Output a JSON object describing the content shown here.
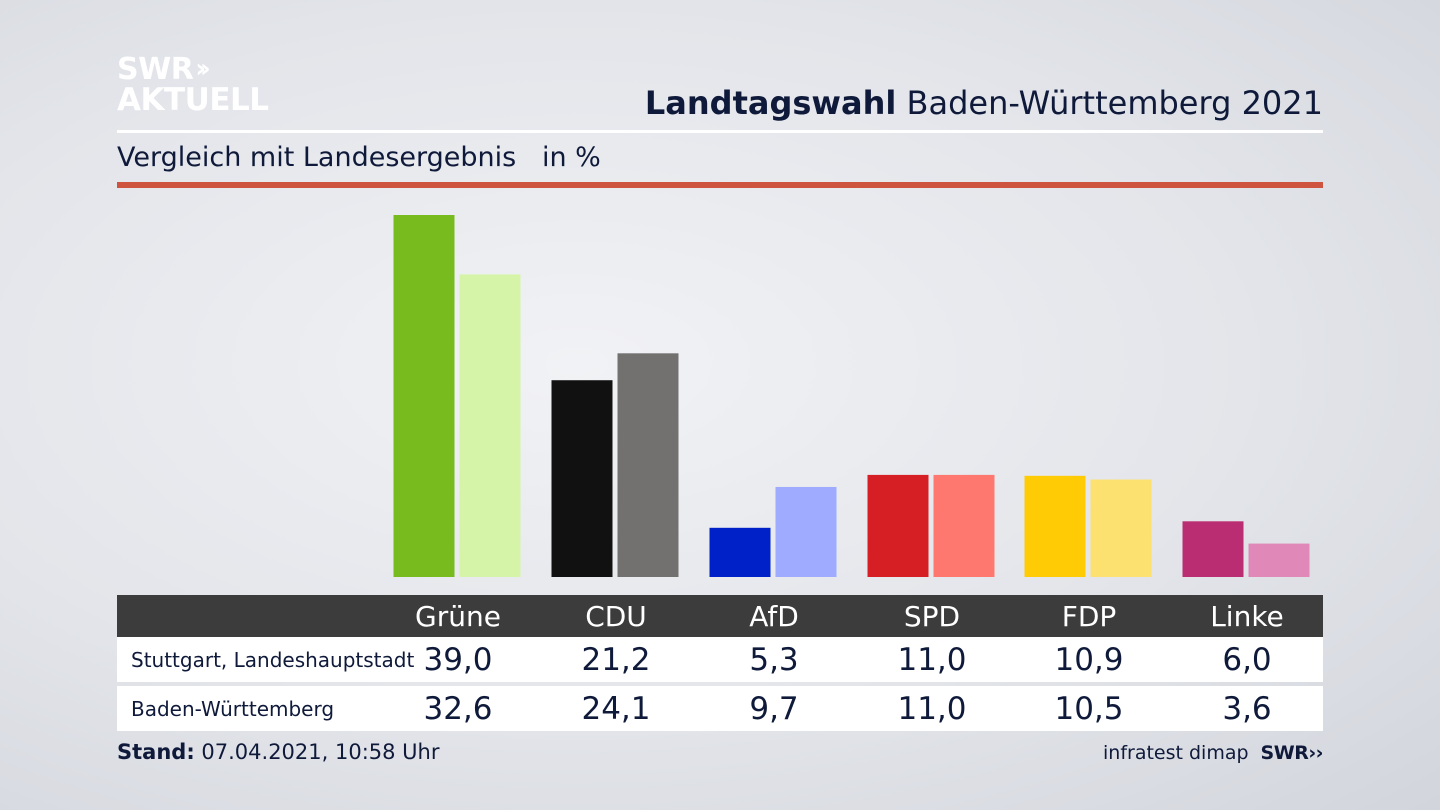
{
  "logo": {
    "line1": "SWR",
    "chevrons": "››",
    "line2": "AKTUELL"
  },
  "header": {
    "title_bold": "Landtagswahl",
    "title_rest": "Baden-Württemberg 2021",
    "subtitle": "Vergleich mit Landesergebnis   in %"
  },
  "colors": {
    "accent_red": "#cf5440",
    "table_header": "#3c3c3c"
  },
  "chart_data": {
    "type": "bar",
    "categories": [
      "Grüne",
      "CDU",
      "AfD",
      "SPD",
      "FDP",
      "Linke"
    ],
    "series": [
      {
        "name": "Stuttgart, Landeshauptstadt",
        "values": [
          39.0,
          21.2,
          5.3,
          11.0,
          10.9,
          6.0
        ],
        "colors": [
          "#77bb1e",
          "#111111",
          "#0020c8",
          "#d61f25",
          "#ffcb05",
          "#bb2d72"
        ]
      },
      {
        "name": "Baden-Württemberg",
        "values": [
          32.6,
          24.1,
          9.7,
          11.0,
          10.5,
          3.6
        ],
        "colors": [
          "#d5f4a8",
          "#737170",
          "#9eabff",
          "#ff7870",
          "#fce070",
          "#e088b8"
        ]
      }
    ],
    "ylim": [
      0,
      39.0
    ],
    "grid": false,
    "legend": "table-below"
  },
  "table": {
    "headers": [
      "Grüne",
      "CDU",
      "AfD",
      "SPD",
      "FDP",
      "Linke"
    ],
    "rows": [
      {
        "label": "Stuttgart, Landeshauptstadt",
        "values": [
          "39,0",
          "21,2",
          "5,3",
          "11,0",
          "10,9",
          "6,0"
        ]
      },
      {
        "label": "Baden-Württemberg",
        "values": [
          "32,6",
          "24,1",
          "9,7",
          "11,0",
          "10,5",
          "3,6"
        ]
      }
    ]
  },
  "footer": {
    "stand_label": "Stand:",
    "stand_value": " 07.04.2021, 10:58 Uhr",
    "source": "infratest dimap",
    "source_logo": "SWR",
    "source_logo_chevrons": "››"
  }
}
